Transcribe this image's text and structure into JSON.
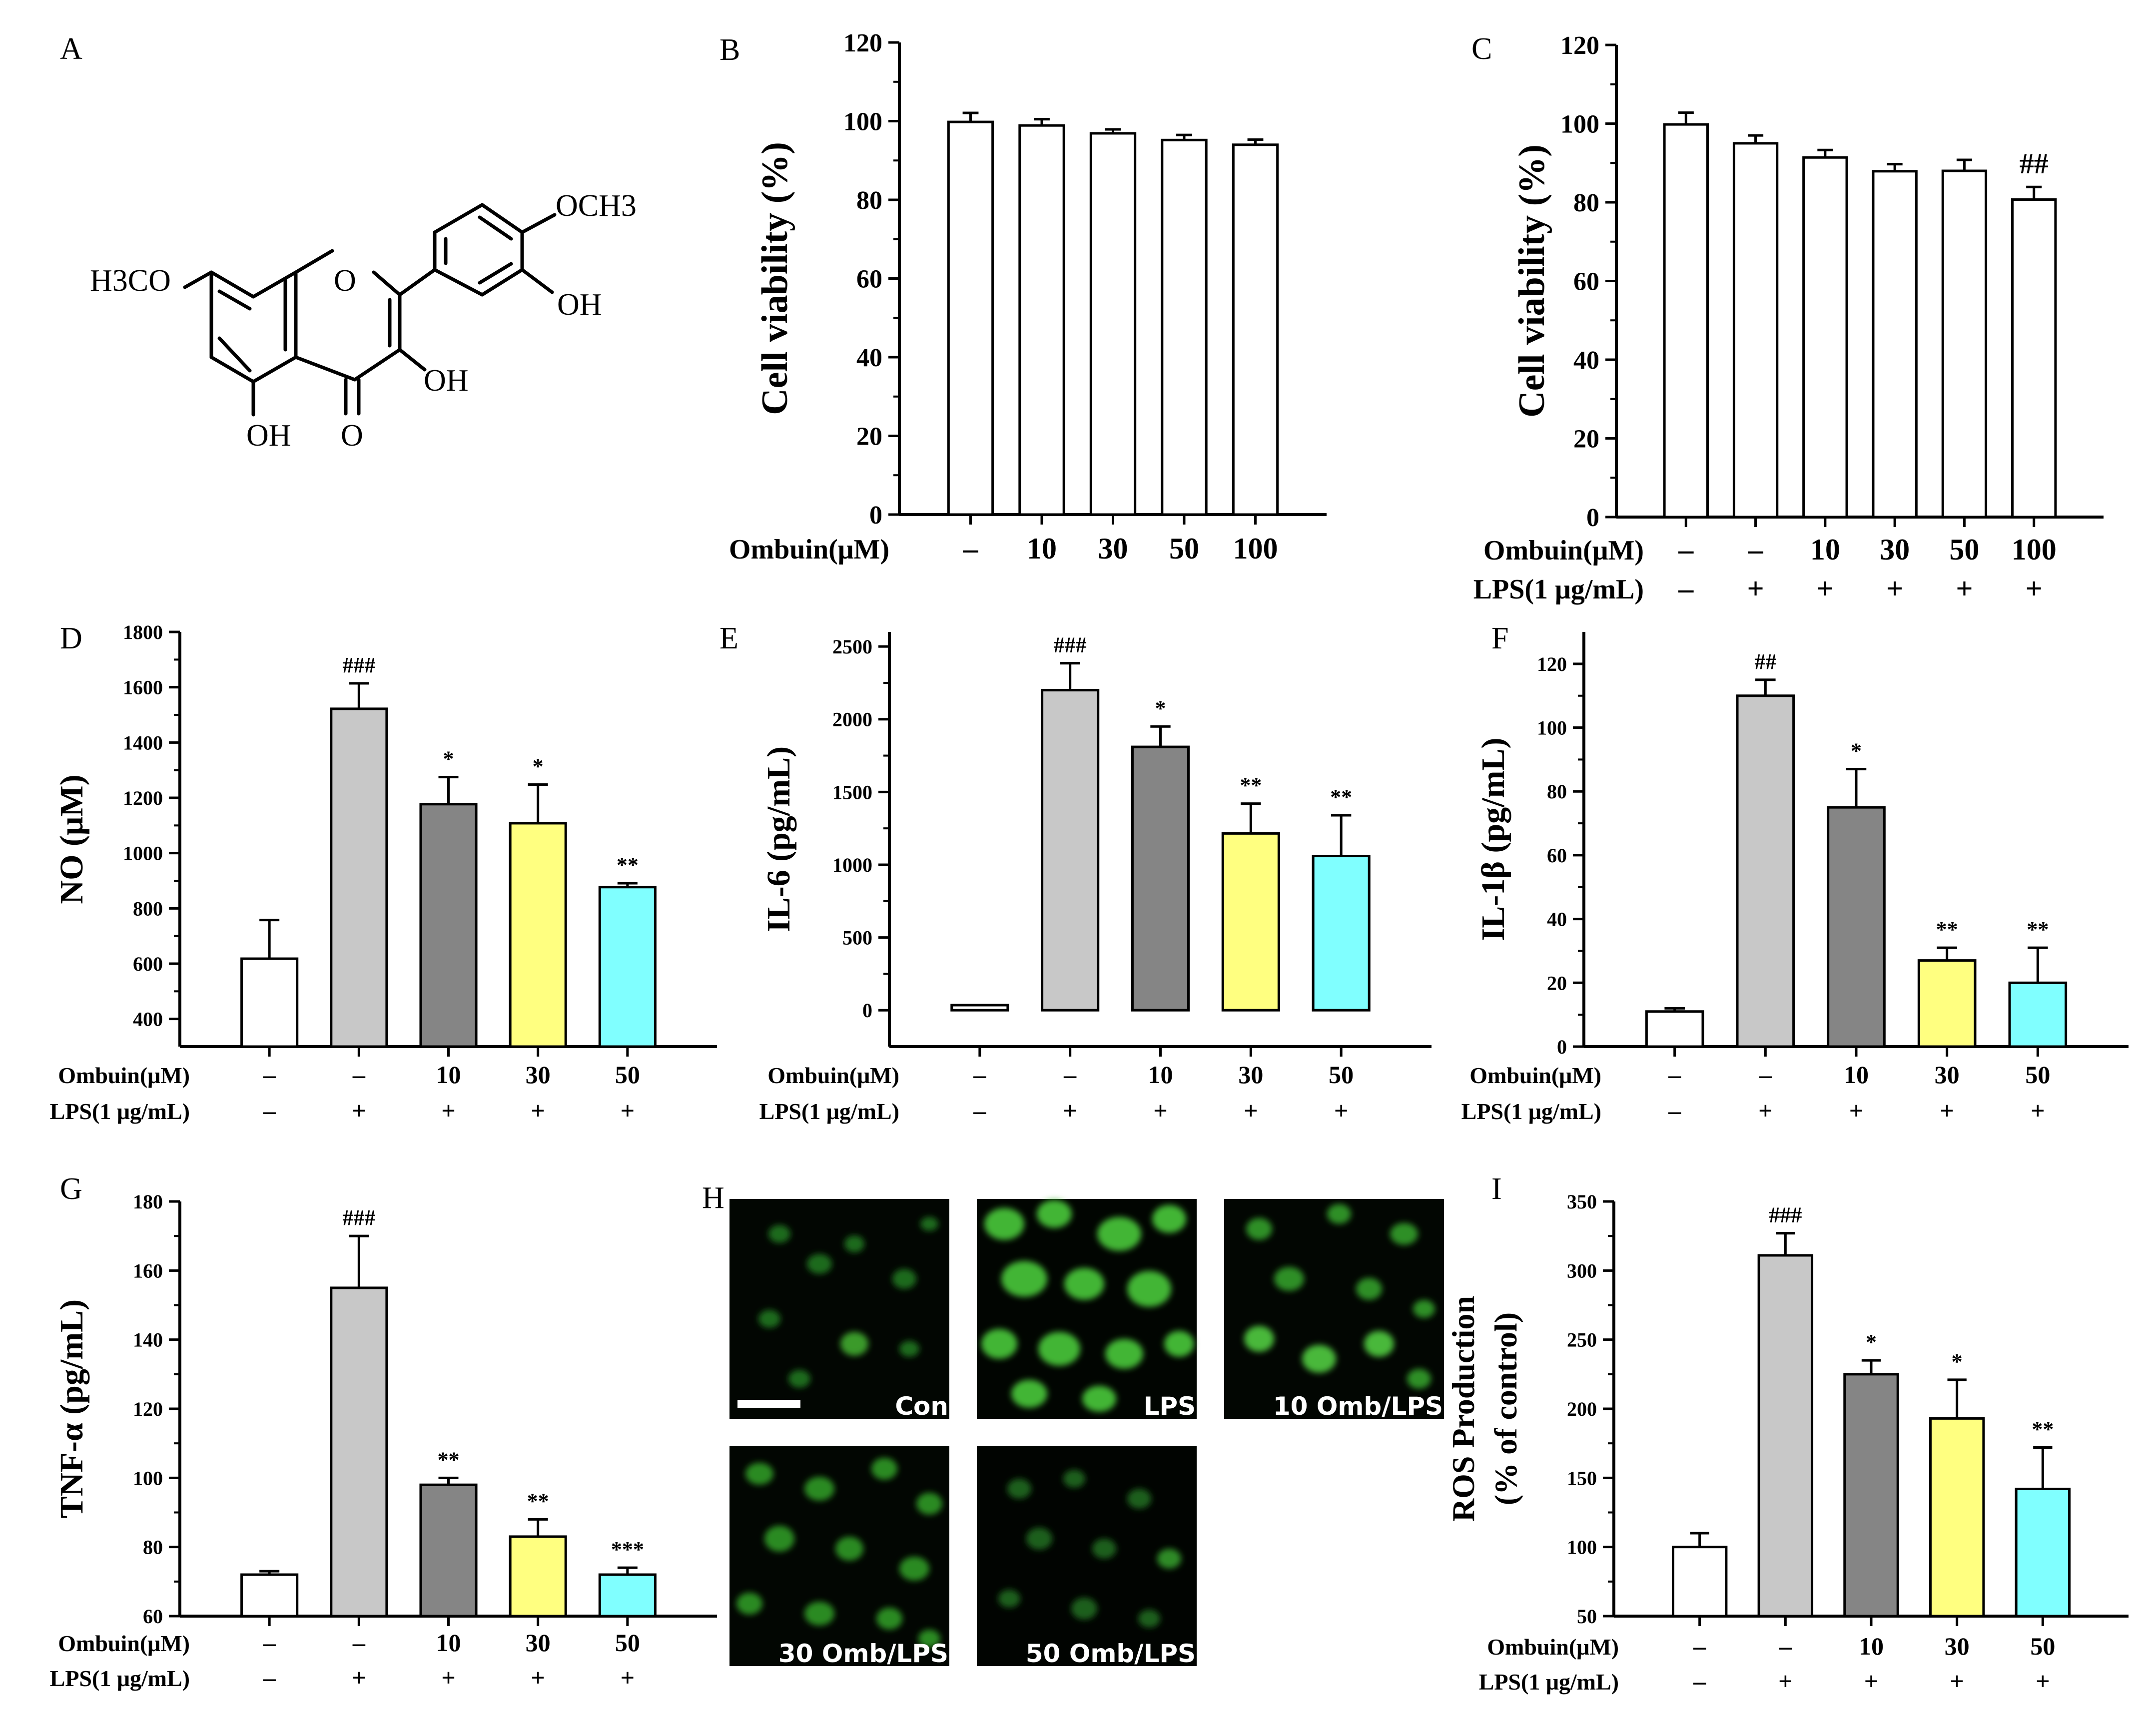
{
  "chemical_structure": {
    "panel_label": "A",
    "groups": [
      "H3CO",
      "OCH3",
      "OH",
      "OH",
      "OH",
      "O",
      "O"
    ]
  },
  "chart_data": [
    {
      "panel": "B",
      "type": "bar",
      "ylabel": "Cell viability (%)",
      "ylim": [
        0,
        120
      ],
      "yticks": [
        0,
        20,
        40,
        60,
        80,
        100,
        120
      ],
      "rows": [
        {
          "label": "Ombuin(μM)",
          "values": [
            "–",
            "10",
            "30",
            "50",
            "100"
          ]
        }
      ],
      "values": [
        99.8,
        98.9,
        96.9,
        95.2,
        94.0
      ],
      "errors": [
        2.3,
        1.6,
        1.0,
        1.3,
        1.3
      ],
      "colors": [
        "#ffffff",
        "#ffffff",
        "#ffffff",
        "#ffffff",
        "#ffffff"
      ],
      "annotations": [
        "",
        "",
        "",
        "",
        ""
      ]
    },
    {
      "panel": "C",
      "type": "bar",
      "ylabel": "Cell viability (%)",
      "ylim": [
        0,
        120
      ],
      "yticks": [
        0,
        20,
        40,
        60,
        80,
        100,
        120
      ],
      "rows": [
        {
          "label": "Ombuin(μM)",
          "values": [
            "–",
            "–",
            "10",
            "30",
            "50",
            "100"
          ]
        },
        {
          "label": "LPS(1 μg/mL)",
          "values": [
            "–",
            "+",
            "+",
            "+",
            "+",
            "+"
          ]
        }
      ],
      "values": [
        99.8,
        95.0,
        91.4,
        87.9,
        88.0,
        80.7
      ],
      "errors": [
        3.0,
        2.0,
        1.9,
        1.8,
        2.8,
        3.2
      ],
      "colors": [
        "#ffffff",
        "#ffffff",
        "#ffffff",
        "#ffffff",
        "#ffffff",
        "#ffffff"
      ],
      "annotations": [
        "",
        "",
        "",
        "",
        "",
        "##"
      ]
    },
    {
      "panel": "D",
      "type": "bar",
      "ylabel": "NO (μM)",
      "ylim": [
        300,
        1800
      ],
      "yticks": [
        400,
        600,
        800,
        1000,
        1200,
        1400,
        1600,
        1800
      ],
      "rows": [
        {
          "label": "Ombuin(μM)",
          "values": [
            "–",
            "–",
            "10",
            "30",
            "50"
          ]
        },
        {
          "label": "LPS(1 μg/mL)",
          "values": [
            "–",
            "+",
            "+",
            "+",
            "+"
          ]
        }
      ],
      "values": [
        618,
        1522,
        1177,
        1108,
        877
      ],
      "errors": [
        140,
        92,
        98,
        140,
        14
      ],
      "colors": [
        "#ffffff",
        "#c8c8c8",
        "#858585",
        "#ffff80",
        "#80ffff"
      ],
      "annotations": [
        "",
        "###",
        "*",
        "*",
        "**"
      ]
    },
    {
      "panel": "E",
      "type": "bar",
      "ylabel": "IL-6 (pg/mL)",
      "ylim": [
        -250,
        2600
      ],
      "yticks": [
        0,
        500,
        1000,
        1500,
        2000,
        2500
      ],
      "rows": [
        {
          "label": "Ombuin(μM)",
          "values": [
            "–",
            "–",
            "10",
            "30",
            "50"
          ]
        },
        {
          "label": "LPS(1 μg/mL)",
          "values": [
            "–",
            "+",
            "+",
            "+",
            "+"
          ]
        }
      ],
      "values": [
        35,
        2200,
        1810,
        1215,
        1060
      ],
      "errors": [
        0,
        185,
        140,
        205,
        280
      ],
      "colors": [
        "#ffffff",
        "#c8c8c8",
        "#858585",
        "#ffff80",
        "#80ffff"
      ],
      "annotations": [
        "",
        "###",
        "*",
        "**",
        "**"
      ]
    },
    {
      "panel": "F",
      "type": "bar",
      "ylabel": "IL-1β (pg/mL)",
      "ylim": [
        0,
        130
      ],
      "yticks": [
        0,
        20,
        40,
        60,
        80,
        100,
        120
      ],
      "rows": [
        {
          "label": "Ombuin(μM)",
          "values": [
            "–",
            "–",
            "10",
            "30",
            "50"
          ]
        },
        {
          "label": "LPS(1 μg/mL)",
          "values": [
            "–",
            "+",
            "+",
            "+",
            "+"
          ]
        }
      ],
      "values": [
        11,
        110,
        75,
        27,
        20
      ],
      "errors": [
        1,
        5,
        12,
        4,
        11
      ],
      "colors": [
        "#ffffff",
        "#c8c8c8",
        "#858585",
        "#ffff80",
        "#80ffff"
      ],
      "annotations": [
        "",
        "##",
        "*",
        "**",
        "**"
      ]
    },
    {
      "panel": "G",
      "type": "bar",
      "ylabel": "TNF-α (pg/mL)",
      "ylim": [
        60,
        180
      ],
      "yticks": [
        60,
        80,
        100,
        120,
        140,
        160,
        180
      ],
      "rows": [
        {
          "label": "Ombuin(μM)",
          "values": [
            "–",
            "–",
            "10",
            "30",
            "50"
          ]
        },
        {
          "label": "LPS(1 μg/mL)",
          "values": [
            "–",
            "+",
            "+",
            "+",
            "+"
          ]
        }
      ],
      "values": [
        72,
        155,
        98,
        83,
        72
      ],
      "errors": [
        1,
        15,
        2,
        5,
        2
      ],
      "colors": [
        "#ffffff",
        "#c8c8c8",
        "#858585",
        "#ffff80",
        "#80ffff"
      ],
      "annotations": [
        "",
        "###",
        "**",
        "**",
        "***"
      ]
    },
    {
      "panel": "I",
      "type": "bar",
      "ylabel": [
        "ROS Production",
        "(% of control)"
      ],
      "ylim": [
        50,
        350
      ],
      "yticks": [
        50,
        100,
        150,
        200,
        250,
        300,
        350
      ],
      "rows": [
        {
          "label": "Ombuin(μM)",
          "values": [
            "–",
            "–",
            "10",
            "30",
            "50"
          ]
        },
        {
          "label": "LPS(1 μg/mL)",
          "values": [
            "–",
            "+",
            "+",
            "+",
            "+"
          ]
        }
      ],
      "values": [
        100,
        311,
        225,
        193,
        142
      ],
      "errors": [
        10,
        16,
        10,
        28,
        30
      ],
      "colors": [
        "#ffffff",
        "#c8c8c8",
        "#858585",
        "#ffff80",
        "#80ffff"
      ],
      "annotations": [
        "",
        "###",
        "*",
        "*",
        "**"
      ]
    }
  ],
  "micrographs": {
    "panel_label": "H",
    "labels": [
      "Con",
      "LPS",
      "10 Omb/LPS",
      "30 Omb/LPS",
      "50 Omb/LPS"
    ]
  }
}
